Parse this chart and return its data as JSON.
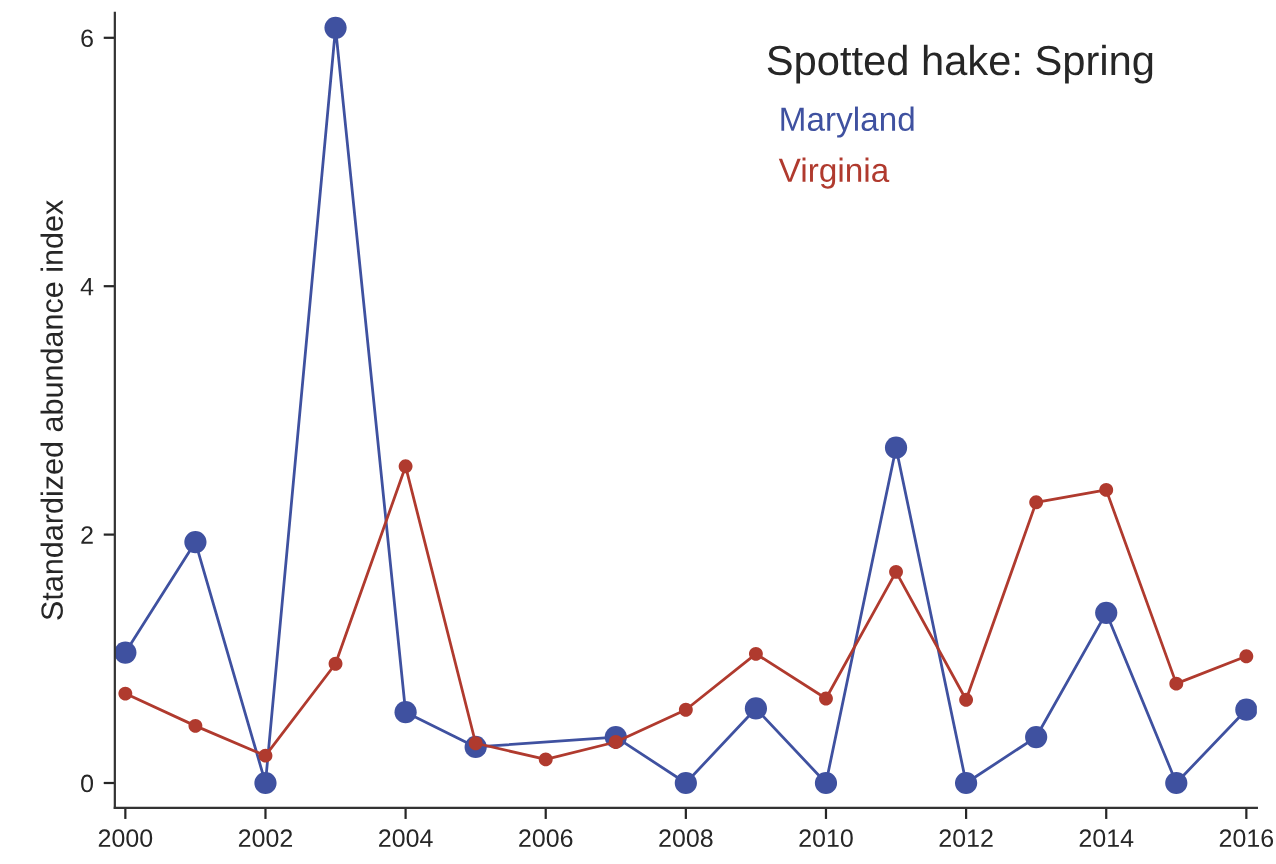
{
  "chart_data": {
    "type": "line",
    "title": "Spotted hake: Spring",
    "ylabel": "Standardized abundance index",
    "series": [
      {
        "name": "Maryland",
        "color": "#3f51a0",
        "x": [
          2000,
          2001,
          2002,
          2003,
          2004,
          2005,
          2007,
          2008,
          2009,
          2010,
          2011,
          2012,
          2013,
          2014,
          2015,
          2016
        ],
        "values": [
          1.05,
          1.94,
          0,
          6.08,
          0.57,
          0.29,
          0.37,
          0,
          0.6,
          0,
          2.7,
          0,
          0.37,
          1.37,
          0,
          0.59
        ]
      },
      {
        "name": "Virginia",
        "color": "#b03a2e",
        "x": [
          2000,
          2001,
          2002,
          2003,
          2004,
          2005,
          2006,
          2007,
          2008,
          2009,
          2010,
          2011,
          2012,
          2013,
          2014,
          2015,
          2016
        ],
        "values": [
          0.72,
          0.46,
          0.22,
          0.96,
          2.55,
          0.32,
          0.19,
          0.33,
          0.59,
          1.04,
          0.68,
          1.7,
          0.67,
          2.26,
          2.36,
          0.8,
          1.02
        ]
      }
    ],
    "xlim": [
      1999.85,
      2016.15
    ],
    "xticks": [
      2000,
      2002,
      2004,
      2006,
      2008,
      2010,
      2012,
      2014,
      2016
    ],
    "ylim": [
      -0.2,
      6.2
    ],
    "yticks": [
      0,
      2,
      4,
      6
    ],
    "marker": "circle",
    "line_style": "solid",
    "grid": false,
    "legend": "top right"
  }
}
